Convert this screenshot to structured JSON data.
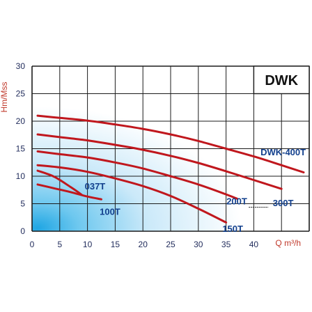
{
  "colors": {
    "curve": "#c0171d",
    "label": "#13408d",
    "grid": "#1b1b1b",
    "axis_title": "#c0392b",
    "glow": "#39b7e8"
  },
  "chart_data": {
    "type": "line",
    "title": "DWK",
    "xlabel": "Q m³/h",
    "ylabel": "Hm/Mss",
    "xlim": [
      0,
      50
    ],
    "ylim": [
      0,
      30
    ],
    "x_ticks": [
      "0",
      "5",
      "10",
      "15",
      "20",
      "25",
      "30",
      "35",
      "40"
    ],
    "y_ticks": [
      "0",
      "5",
      "10",
      "15",
      "20",
      "25",
      "30"
    ],
    "grid": true,
    "series": [
      {
        "name": "037T",
        "x": [
          1,
          4,
          7,
          9
        ],
        "y": [
          11,
          9.9,
          8,
          6.6
        ]
      },
      {
        "name": "100T",
        "x": [
          1,
          4,
          7,
          10,
          12.5
        ],
        "y": [
          8.5,
          7.8,
          7.1,
          6.3,
          5.8
        ]
      },
      {
        "name": "150T",
        "x": [
          1,
          5,
          10,
          15,
          20,
          25,
          30,
          35
        ],
        "y": [
          12,
          11.6,
          10.8,
          9.6,
          8.2,
          6.4,
          4.1,
          1.6
        ]
      },
      {
        "name": "200T",
        "x": [
          1,
          5,
          10,
          15,
          20,
          25,
          30,
          35,
          37
        ],
        "y": [
          14.5,
          14.0,
          13.4,
          12.5,
          11.4,
          10.0,
          8.5,
          6.7,
          5.9
        ]
      },
      {
        "name": "300T",
        "x": [
          1,
          5,
          10,
          15,
          20,
          25,
          30,
          35,
          40,
          45
        ],
        "y": [
          17.6,
          17.1,
          16.5,
          15.7,
          14.8,
          13.7,
          12.4,
          10.9,
          9.3,
          7.7
        ]
      },
      {
        "name": "DWK-400T",
        "x": [
          1,
          5,
          10,
          15,
          20,
          25,
          30,
          35,
          40,
          45,
          49
        ],
        "y": [
          21,
          20.6,
          20.1,
          19.4,
          18.6,
          17.6,
          16.4,
          15.0,
          13.6,
          12.0,
          10.7
        ]
      }
    ]
  }
}
